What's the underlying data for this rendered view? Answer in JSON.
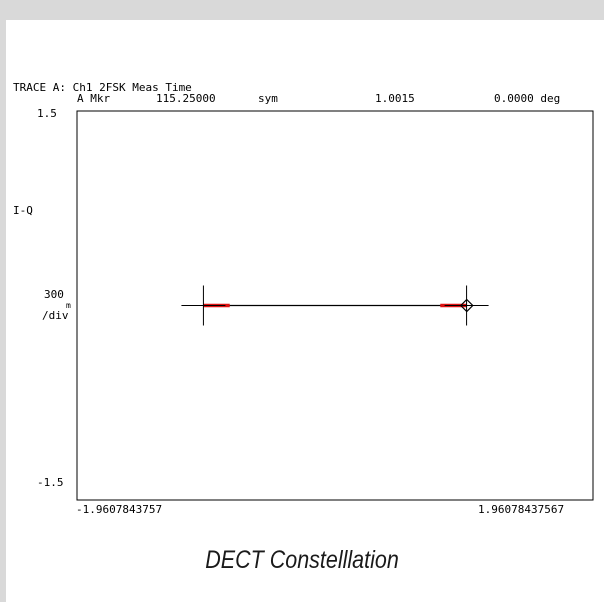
{
  "header": {
    "trace_title": "TRACE A: Ch1 2FSK Meas Time",
    "marker_label": "A Mkr",
    "marker_position": "115.25000",
    "marker_unit": "sym",
    "marker_magnitude": "1.0015",
    "marker_phase": "0.0000 deg"
  },
  "y_axis": {
    "top_label": "1.5",
    "bottom_label": "-1.5",
    "name_label": "I-Q",
    "scale_value": "300",
    "scale_prefix": "m",
    "scale_unit": "/div"
  },
  "x_axis": {
    "left_label": "-1.9607843757",
    "right_label": "1.96078437567"
  },
  "caption": "DECT Constelllation",
  "colors": {
    "background": "#d9d9d9",
    "plot": "#ffffff",
    "trace": "#000000",
    "cluster": "#dd1111"
  },
  "chart_data": {
    "type": "scatter",
    "title": "TRACE A: Ch1 2FSK Meas Time",
    "xlim": [
      -1.9607843757,
      1.96078437567
    ],
    "ylim": [
      -1.5,
      1.5
    ],
    "grid": false,
    "symbols": [
      {
        "x": -1.0,
        "y": 0.0
      },
      {
        "x": 1.0,
        "y": 0.0
      }
    ],
    "trace_path": [
      {
        "x": -1.0,
        "y": 0.0
      },
      {
        "x": 1.0,
        "y": 0.0
      }
    ],
    "clusters": [
      {
        "x_from": -1.0,
        "x_to": -0.8,
        "y": 0.0
      },
      {
        "x_from": 0.8,
        "x_to": 1.0,
        "y": 0.0
      }
    ],
    "marker": {
      "x": 1.0015,
      "y": 0.0
    }
  }
}
